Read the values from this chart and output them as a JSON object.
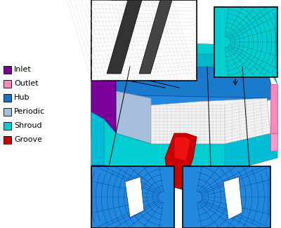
{
  "legend_items": [
    {
      "label": "Inlet",
      "color": "#7B0099"
    },
    {
      "label": "Outlet",
      "color": "#FF88BB"
    },
    {
      "label": "Hub",
      "color": "#1A6FCC"
    },
    {
      "label": "Periodic",
      "color": "#A8BEDD"
    },
    {
      "label": "Shroud",
      "color": "#00CED1"
    },
    {
      "label": "Groove",
      "color": "#CC0000"
    }
  ],
  "background_color": "#FFFFFF",
  "legend_fontsize": 8.0
}
